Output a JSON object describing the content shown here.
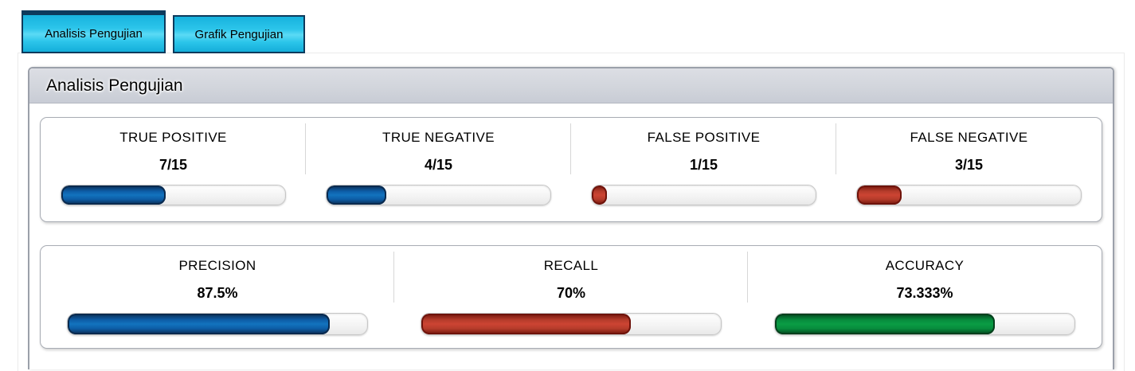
{
  "tabs": [
    {
      "label": "Analisis Pengujian",
      "active": true
    },
    {
      "label": "Grafik Pengujian",
      "active": false
    }
  ],
  "panel": {
    "title": "Analisis Pengujian"
  },
  "confusion_metrics": [
    {
      "label": "TRUE POSITIVE",
      "value": "7/15",
      "percent": 46.667,
      "color": "blue"
    },
    {
      "label": "TRUE NEGATIVE",
      "value": "4/15",
      "percent": 26.667,
      "color": "blue"
    },
    {
      "label": "FALSE POSITIVE",
      "value": "1/15",
      "percent": 6.667,
      "color": "red"
    },
    {
      "label": "FALSE NEGATIVE",
      "value": "3/15",
      "percent": 20,
      "color": "red"
    }
  ],
  "performance_metrics": [
    {
      "label": "PRECISION",
      "value": "87.5%",
      "percent": 87.5,
      "color": "blue"
    },
    {
      "label": "RECALL",
      "value": "70%",
      "percent": 70,
      "color": "red"
    },
    {
      "label": "ACCURACY",
      "value": "73.333%",
      "percent": 73.333,
      "color": "green"
    }
  ],
  "colors": {
    "tab_fill": "#2bc4e8",
    "tab_border": "#0d3a5c",
    "header_bg": "#d2d5dc",
    "bar_blue": "#1273be",
    "bar_red": "#cc4433",
    "bar_green": "#0a9c44"
  }
}
